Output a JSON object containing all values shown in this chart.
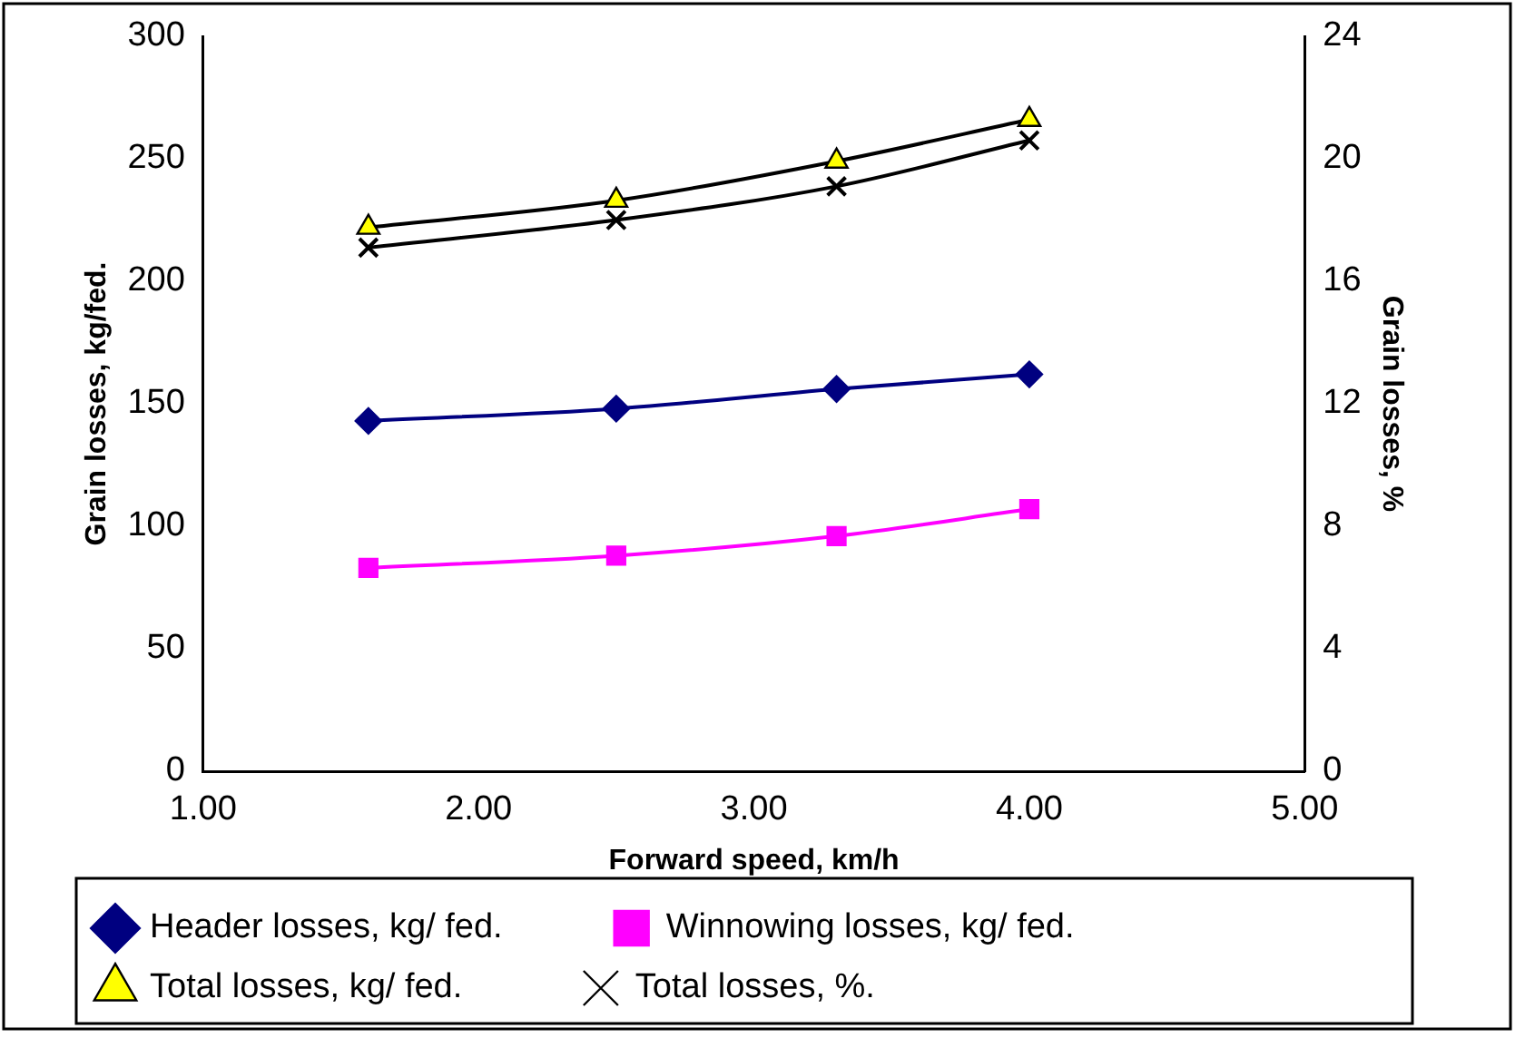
{
  "chart_data": {
    "type": "line",
    "xlabel": "Forward speed, km/h",
    "ylabel": "Grain losses, kg/fed.",
    "y2label": "Grain losses, %",
    "x": [
      1.6,
      2.5,
      3.3,
      4.0
    ],
    "xlim": [
      1,
      5
    ],
    "xticks": [
      {
        "value": 1,
        "label": "1.00"
      },
      {
        "value": 2,
        "label": "2.00"
      },
      {
        "value": 3,
        "label": "3.00"
      },
      {
        "value": 4,
        "label": "4.00"
      },
      {
        "value": 5,
        "label": "5.00"
      }
    ],
    "ylim": [
      0,
      300
    ],
    "yticks": [
      0,
      50,
      100,
      150,
      200,
      250,
      300
    ],
    "y2lim": [
      0,
      24
    ],
    "y2ticks": [
      0,
      4,
      8,
      12,
      16,
      20,
      24
    ],
    "grid": false,
    "legend": "bottom",
    "series": [
      {
        "name": "Header losses, kg/ fed.",
        "color": "#000080",
        "marker": "diamond",
        "values": [
          143,
          148,
          156,
          162
        ]
      },
      {
        "name": "Winnowing losses, kg/ fed.",
        "color": "#ff00ff",
        "marker": "square",
        "values": [
          83,
          88,
          96,
          107
        ]
      },
      {
        "name": "Total losses, kg/ fed.",
        "color": "#000000",
        "marker": "triangle",
        "values": [
          222,
          233,
          249,
          266
        ]
      },
      {
        "name": "Total losses, %.",
        "color": "#000000",
        "marker": "cross",
        "axis": "y2",
        "values": [
          17.1,
          18.0,
          19.1,
          20.6
        ]
      }
    ]
  }
}
